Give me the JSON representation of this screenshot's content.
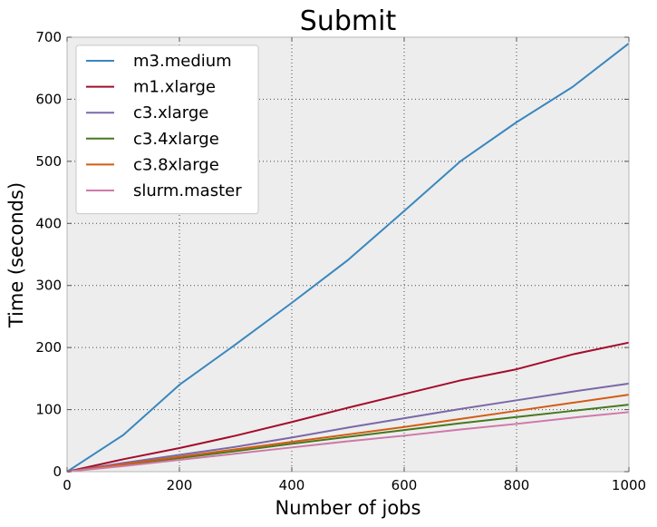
{
  "chart_data": {
    "type": "line",
    "title": "Submit",
    "xlabel": "Number of jobs",
    "ylabel": "Time (seconds)",
    "xlim": [
      0,
      1000
    ],
    "ylim": [
      0,
      700
    ],
    "xticks": [
      0,
      200,
      400,
      600,
      800,
      1000
    ],
    "yticks": [
      0,
      100,
      200,
      300,
      400,
      500,
      600,
      700
    ],
    "grid": true,
    "legend_position": "top-left",
    "background_color": "#ededed",
    "series": [
      {
        "name": "m3.medium",
        "color": "#3a87be",
        "x": [
          0,
          100,
          200,
          300,
          400,
          500,
          600,
          700,
          800,
          900,
          1000
        ],
        "y": [
          0,
          59,
          140,
          205,
          272,
          341,
          420,
          500,
          563,
          620,
          690
        ]
      },
      {
        "name": "m1.xlarge",
        "color": "#a40c2c",
        "x": [
          0,
          100,
          200,
          300,
          400,
          500,
          600,
          700,
          800,
          900,
          1000
        ],
        "y": [
          0,
          20,
          38,
          58,
          80,
          103,
          125,
          147,
          165,
          189,
          208
        ]
      },
      {
        "name": "c3.xlarge",
        "color": "#7a68a8",
        "x": [
          0,
          100,
          200,
          300,
          400,
          500,
          600,
          700,
          800,
          900,
          1000
        ],
        "y": [
          0,
          14,
          27,
          40,
          55,
          71,
          86,
          101,
          115,
          129,
          142
        ]
      },
      {
        "name": "c3.4xlarge",
        "color": "#46781e",
        "x": [
          0,
          100,
          200,
          300,
          400,
          500,
          600,
          700,
          800,
          900,
          1000
        ],
        "y": [
          0,
          11,
          22,
          33,
          45,
          56,
          67,
          78,
          88,
          98,
          108
        ]
      },
      {
        "name": "c3.8xlarge",
        "color": "#d35c12",
        "x": [
          0,
          100,
          200,
          300,
          400,
          500,
          600,
          700,
          800,
          900,
          1000
        ],
        "y": [
          0,
          12,
          24,
          36,
          48,
          60,
          72,
          85,
          98,
          111,
          124
        ]
      },
      {
        "name": "slurm.master",
        "color": "#cf78a8",
        "x": [
          0,
          100,
          200,
          300,
          400,
          500,
          600,
          700,
          800,
          900,
          1000
        ],
        "y": [
          0,
          9,
          19,
          29,
          39,
          49,
          58,
          68,
          77,
          87,
          96
        ]
      }
    ]
  }
}
